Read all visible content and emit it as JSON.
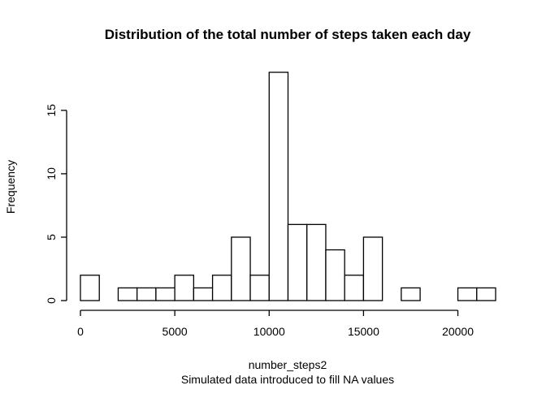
{
  "chart_data": {
    "type": "bar",
    "title": "Distribution of the total number of steps taken each day",
    "xlabel": "number_steps2",
    "ylabel": "Frequency",
    "subtitle": "Simulated data introduced to fill NA values",
    "bin_width": 1000,
    "bins": [
      {
        "start": 0,
        "end": 1000,
        "count": 2
      },
      {
        "start": 1000,
        "end": 2000,
        "count": 0
      },
      {
        "start": 2000,
        "end": 3000,
        "count": 1
      },
      {
        "start": 3000,
        "end": 4000,
        "count": 1
      },
      {
        "start": 4000,
        "end": 5000,
        "count": 1
      },
      {
        "start": 5000,
        "end": 6000,
        "count": 2
      },
      {
        "start": 6000,
        "end": 7000,
        "count": 1
      },
      {
        "start": 7000,
        "end": 8000,
        "count": 2
      },
      {
        "start": 8000,
        "end": 9000,
        "count": 5
      },
      {
        "start": 9000,
        "end": 10000,
        "count": 2
      },
      {
        "start": 10000,
        "end": 11000,
        "count": 18
      },
      {
        "start": 11000,
        "end": 12000,
        "count": 6
      },
      {
        "start": 12000,
        "end": 13000,
        "count": 6
      },
      {
        "start": 13000,
        "end": 14000,
        "count": 4
      },
      {
        "start": 14000,
        "end": 15000,
        "count": 2
      },
      {
        "start": 15000,
        "end": 16000,
        "count": 5
      },
      {
        "start": 16000,
        "end": 17000,
        "count": 0
      },
      {
        "start": 17000,
        "end": 18000,
        "count": 1
      },
      {
        "start": 18000,
        "end": 19000,
        "count": 0
      },
      {
        "start": 19000,
        "end": 20000,
        "count": 0
      },
      {
        "start": 20000,
        "end": 21000,
        "count": 1
      },
      {
        "start": 21000,
        "end": 22000,
        "count": 1
      }
    ],
    "x_ticks": [
      0,
      5000,
      10000,
      15000,
      20000
    ],
    "y_ticks": [
      0,
      5,
      10,
      15
    ],
    "xlim": [
      0,
      22000
    ],
    "ylim": [
      0,
      18
    ],
    "grid": false,
    "bar_fill": "#ffffff",
    "bar_stroke": "#000000"
  }
}
